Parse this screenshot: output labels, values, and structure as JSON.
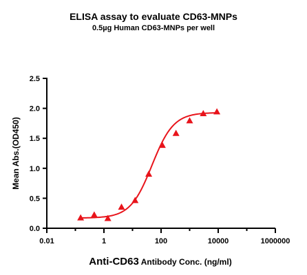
{
  "chart_data": {
    "type": "scatter",
    "title": "ELISA assay to evaluate CD63-MNPs",
    "subtitle": "0.5µg Human CD63-MNPs per well",
    "xlabel": {
      "main": "Anti-CD63",
      "rest": " Antibody Conc. (ng/ml)"
    },
    "ylabel": "Mean Abs.(OD450)",
    "x_scale": "log",
    "xlim": [
      0.01,
      1000000
    ],
    "ylim": [
      0,
      2.5
    ],
    "x_ticks": [
      {
        "value": 0.01,
        "label": "0.01"
      },
      {
        "value": 1,
        "label": "1"
      },
      {
        "value": 100,
        "label": "100"
      },
      {
        "value": 10000,
        "label": "10000"
      },
      {
        "value": 1000000,
        "label": "1000000"
      }
    ],
    "y_ticks": [
      {
        "value": 0,
        "label": "0.0"
      },
      {
        "value": 0.5,
        "label": "0.5"
      },
      {
        "value": 1,
        "label": "1.0"
      },
      {
        "value": 1.5,
        "label": "1.5"
      },
      {
        "value": 2,
        "label": "2.0"
      },
      {
        "value": 2.5,
        "label": "2.5"
      }
    ],
    "grid": false,
    "color": "#e8141b",
    "marker": "triangle",
    "series": [
      {
        "points": [
          {
            "x": 0.153,
            "y": 0.17
          },
          {
            "x": 0.457,
            "y": 0.22
          },
          {
            "x": 1.37,
            "y": 0.16
          },
          {
            "x": 4.12,
            "y": 0.35
          },
          {
            "x": 12.3,
            "y": 0.46
          },
          {
            "x": 37,
            "y": 0.9
          },
          {
            "x": 111,
            "y": 1.38
          },
          {
            "x": 333,
            "y": 1.58
          },
          {
            "x": 1000,
            "y": 1.79
          },
          {
            "x": 3000,
            "y": 1.91
          },
          {
            "x": 9000,
            "y": 1.94
          }
        ],
        "fit": {
          "model": "4PL",
          "bottom": 0.17,
          "top": 1.93,
          "ec50": 48,
          "hill": 1.15
        }
      }
    ]
  }
}
